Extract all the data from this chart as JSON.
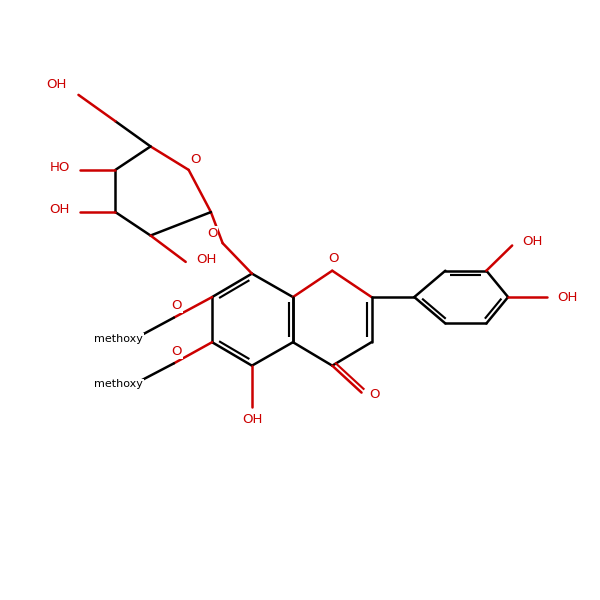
{
  "bg_color": "#ffffff",
  "bond_color": "#000000",
  "heteroatom_color": "#cc0000",
  "line_width": 1.8,
  "font_size": 9.5,
  "figsize": [
    6.0,
    6.0
  ],
  "dpi": 100,
  "xlim": [
    0,
    10
  ],
  "ylim": [
    0,
    10
  ]
}
